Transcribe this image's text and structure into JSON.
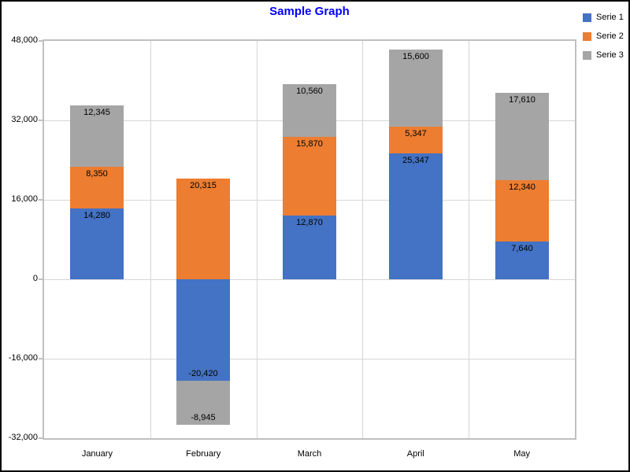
{
  "chart_data": {
    "type": "bar",
    "stacked": true,
    "title": "Sample Graph",
    "categories": [
      "January",
      "February",
      "March",
      "April",
      "May"
    ],
    "series": [
      {
        "name": "Serie 1",
        "color": "#4472C4",
        "values": [
          14280,
          -20420,
          12870,
          25347,
          7640
        ],
        "value_labels": [
          "14,280",
          "-20,420",
          "12,870",
          "25,347",
          "7,640"
        ]
      },
      {
        "name": "Serie 2",
        "color": "#ED7D31",
        "values": [
          8350,
          20315,
          15870,
          5347,
          12340
        ],
        "value_labels": [
          "8,350",
          "20,315",
          "15,870",
          "5,347",
          "12,340"
        ]
      },
      {
        "name": "Serie 3",
        "color": "#A5A5A5",
        "values": [
          12345,
          -8945,
          10560,
          15600,
          17610
        ],
        "value_labels": [
          "12,345",
          "-8,945",
          "10,560",
          "15,600",
          "17,610"
        ]
      }
    ],
    "y_axis": {
      "min": -32000,
      "max": 48000,
      "tick_step": 16000,
      "ticks": [
        {
          "value": 48000,
          "label": "48,000"
        },
        {
          "value": 32000,
          "label": "32,000"
        },
        {
          "value": 16000,
          "label": "16,000"
        },
        {
          "value": 0,
          "label": "0"
        },
        {
          "value": -16000,
          "label": "-16,000"
        },
        {
          "value": -32000,
          "label": "-32,000"
        }
      ]
    },
    "grid": true,
    "legend_position": "top-right"
  },
  "colors": {
    "title": "#0000FF",
    "plot_border": "#C0C0C0",
    "gridline": "#D6D6D6",
    "axis_text": "#000000",
    "bar_label_text": "#000000",
    "page_border": "#000000"
  }
}
